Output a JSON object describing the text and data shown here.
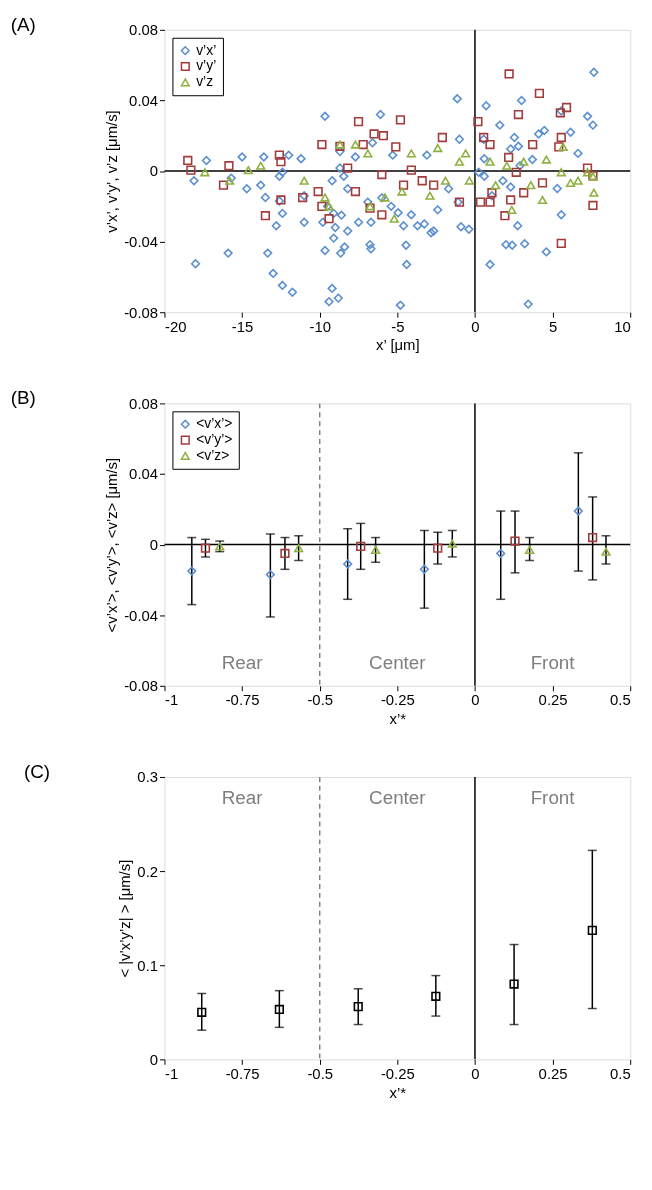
{
  "chart_data": [
    {
      "type": "scatter",
      "title": "(A)",
      "xlabel": "x’ [μm]",
      "ylabel": "v’x’, v’y’, v’z [μm/s]",
      "xlim": [
        -20,
        10
      ],
      "xticks": [
        -20,
        -15,
        -10,
        -5,
        0,
        5,
        10
      ],
      "ylim": [
        -0.08,
        0.08
      ],
      "yticks": [
        -0.08,
        -0.04,
        0,
        0.04,
        0.08
      ],
      "grid": false,
      "legend": "top left",
      "series": [
        {
          "name": "v’x’",
          "color": "#5b8fd0",
          "marker": "diamond",
          "x": [
            7.66,
            -1.14,
            0.72,
            3.0,
            -9.66,
            -6.09,
            5.56,
            7.25,
            7.6,
            1.6,
            4.47,
            6.16,
            4.1,
            6.64,
            -1.0,
            0.56,
            2.54,
            -6.6,
            2.3,
            2.8,
            -17.3,
            -15.0,
            -13.6,
            -12.0,
            -11.2,
            -8.7,
            -7.7,
            -5.3,
            -3.1,
            0.6,
            3.7,
            -18.1,
            -15.7,
            -14.7,
            -13.8,
            -12.6,
            -12.4,
            -11.0,
            -13.5,
            -12.6,
            -12.4,
            -12.8,
            -11.0,
            -9.8,
            -8.7,
            -8.45,
            -9.2,
            -8.2,
            -9.5,
            -9.1,
            -8.6,
            -9.0,
            -8.2,
            -9.1,
            -9.66,
            -8.65,
            -8.4,
            -6.76,
            -6.7,
            -7.5,
            -6.7,
            -6.9,
            -6.0,
            -5.4,
            -4.95,
            -4.6,
            -4.1,
            -3.7,
            -3.26,
            -2.83,
            -2.66,
            -2.4,
            -1.7,
            -1.09,
            -0.9,
            -0.39,
            -4.44,
            -4.4,
            -4.8,
            -8.8,
            -9.4,
            -9.2,
            -11.76,
            -12.4,
            -13.0,
            -13.35,
            -15.9,
            -18.0,
            0.97,
            2.0,
            2.4,
            3.2,
            4.6,
            3.43,
            5.56,
            5.3,
            2.75,
            2.3,
            1.8,
            0.6,
            0.24,
            2.9,
            1.09
          ],
          "values": [
            0.056,
            0.041,
            0.037,
            0.04,
            0.031,
            0.032,
            0.034,
            0.031,
            0.026,
            0.026,
            0.023,
            0.022,
            0.021,
            0.01,
            0.018,
            0.018,
            0.019,
            0.016,
            0.0125,
            0.014,
            0.006,
            0.008,
            0.008,
            0.009,
            0.007,
            0.011,
            0.008,
            0.009,
            0.009,
            0.007,
            0.0065,
            -0.0055,
            -0.004,
            -0.01,
            -0.008,
            -0.003,
            -0.0007,
            -0.014,
            -0.015,
            -0.017,
            -0.024,
            -0.031,
            -0.029,
            -0.029,
            0.0017,
            -0.003,
            -0.0055,
            -0.01,
            -0.02,
            -0.024,
            -0.025,
            -0.032,
            -0.034,
            -0.038,
            -0.045,
            -0.0465,
            -0.043,
            -0.0417,
            -0.044,
            -0.029,
            -0.029,
            -0.0176,
            -0.0152,
            -0.02,
            -0.0236,
            -0.031,
            -0.0248,
            -0.031,
            -0.03,
            -0.035,
            -0.034,
            -0.022,
            -0.01,
            -0.0176,
            -0.0316,
            -0.033,
            -0.042,
            -0.053,
            -0.076,
            -0.072,
            -0.074,
            -0.0665,
            -0.0687,
            -0.0648,
            -0.058,
            -0.0465,
            -0.0465,
            -0.0525,
            -0.053,
            -0.0417,
            -0.042,
            -0.0412,
            -0.0458,
            -0.0754,
            -0.0248,
            -0.0099,
            -0.031,
            -0.009,
            -0.0055,
            -0.003,
            -0.0007,
            0.003,
            -0.014
          ]
        },
        {
          "name": "v’y’",
          "color": "#a33b3b",
          "marker": "square",
          "x": [
            2.2,
            4.15,
            5.9,
            5.5,
            2.8,
            0.19,
            -7.5,
            -4.8,
            -6.5,
            -5.9,
            -2.1,
            0.56,
            0.97,
            -9.86,
            -8.7,
            -7.2,
            -5.1,
            3.72,
            5.56,
            5.4,
            7.25,
            -18.5,
            -18.3,
            -15.85,
            -12.6,
            -12.5,
            -16.2,
            -13.5,
            -12.5,
            -11.1,
            -10.1,
            -9.86,
            -9.4,
            -7.7,
            -6.76,
            -6.0,
            -4.6,
            -3.4,
            -2.66,
            -1.0,
            0.36,
            1.09,
            0.97,
            1.93,
            2.3,
            3.14,
            4.35,
            5.56,
            7.6,
            7.6,
            2.17,
            2.66,
            -8.2,
            -6.0,
            -4.1
          ],
          "values": [
            0.055,
            0.044,
            0.036,
            0.033,
            0.032,
            0.028,
            0.028,
            0.029,
            0.021,
            0.02,
            0.019,
            0.019,
            0.015,
            0.015,
            0.014,
            0.015,
            0.0137,
            0.015,
            0.019,
            0.0137,
            0.0017,
            0.006,
            0.0005,
            0.003,
            0.009,
            0.0053,
            -0.008,
            -0.0253,
            -0.0164,
            -0.015,
            -0.0116,
            -0.02,
            -0.027,
            -0.0116,
            -0.021,
            -0.0248,
            -0.008,
            -0.0055,
            -0.008,
            -0.0176,
            -0.0176,
            -0.0123,
            -0.0176,
            -0.0253,
            -0.0164,
            -0.0123,
            -0.0067,
            -0.041,
            -0.0195,
            -0.0027,
            0.0077,
            -0.0007,
            0.0017,
            -0.002,
            0.0005
          ]
        },
        {
          "name": "v’z",
          "color": "#8db03f",
          "marker": "triangle",
          "x": [
            -17.4,
            -15.8,
            -14.6,
            -13.8,
            -11.0,
            -9.66,
            -9.4,
            -8.7,
            -7.7,
            -6.76,
            -6.9,
            -5.2,
            -4.1,
            -2.4,
            -2.9,
            -1.9,
            -1.0,
            -0.6,
            -0.36,
            0.97,
            1.33,
            2.05,
            2.37,
            3.14,
            3.6,
            4.35,
            4.6,
            5.56,
            5.68,
            6.16,
            6.64,
            7.25,
            7.66,
            7.6,
            -5.8,
            -4.7
          ],
          "values": [
            -0.0007,
            -0.0055,
            0.0005,
            0.003,
            -0.0055,
            -0.015,
            -0.02,
            0.015,
            0.015,
            -0.02,
            0.01,
            -0.027,
            0.01,
            0.013,
            -0.014,
            -0.0055,
            0.0053,
            0.01,
            -0.0055,
            0.0053,
            -0.008,
            0.003,
            -0.022,
            0.0053,
            -0.008,
            -0.0164,
            0.0065,
            -0.0007,
            0.0137,
            -0.0067,
            -0.0055,
            -0.0007,
            -0.0123,
            -0.003,
            -0.015,
            -0.0116
          ]
        }
      ],
      "ref_lines": [
        {
          "axis": "x",
          "value": 0,
          "color": "#000000",
          "line_style": "solid"
        },
        {
          "axis": "y",
          "value": 0,
          "color": "#000000",
          "line_style": "solid"
        }
      ]
    },
    {
      "type": "scatter",
      "title": "(B)",
      "xlabel": "x’*",
      "ylabel": "<v’x’>, <v’y’>, <v’z> [μm/s]",
      "xlim": [
        -1,
        0.5
      ],
      "xticks": [
        -1,
        -0.75,
        -0.5,
        -0.25,
        0,
        0.25,
        0.5
      ],
      "ylim": [
        -0.08,
        0.08
      ],
      "yticks": [
        -0.08,
        -0.04,
        0,
        0.04,
        0.08
      ],
      "grid": false,
      "legend": "top left",
      "series": [
        {
          "name": "<v’x’>",
          "color": "#5b8fd0",
          "marker": "diamond",
          "x": [
            -0.912,
            -0.659,
            -0.41,
            -0.163,
            0.083,
            0.333
          ],
          "values": [
            -0.015,
            -0.017,
            -0.011,
            -0.014,
            -0.005,
            0.019
          ],
          "errors": [
            [
              -0.034,
              0.004
            ],
            [
              -0.041,
              0.006
            ],
            [
              -0.031,
              0.009
            ],
            [
              -0.036,
              0.008
            ],
            [
              -0.031,
              0.019
            ],
            [
              -0.015,
              0.052
            ]
          ]
        },
        {
          "name": "<v’y’>",
          "color": "#a33b3b",
          "marker": "square",
          "x": [
            -0.868,
            -0.612,
            -0.368,
            -0.12,
            0.129,
            0.379
          ],
          "values": [
            -0.002,
            -0.005,
            -0.001,
            -0.002,
            0.002,
            0.004
          ],
          "errors": [
            [
              -0.007,
              0.003
            ],
            [
              -0.014,
              0.004
            ],
            [
              -0.014,
              0.012
            ],
            [
              -0.011,
              0.007
            ],
            [
              -0.016,
              0.019
            ],
            [
              -0.02,
              0.027
            ]
          ]
        },
        {
          "name": "<v’z>",
          "color": "#8db03f",
          "marker": "triangle",
          "x": [
            -0.822,
            -0.568,
            -0.32,
            -0.073,
            0.176,
            0.422
          ],
          "values": [
            -0.001,
            -0.002,
            -0.003,
            0.0005,
            -0.003,
            -0.004
          ],
          "errors": [
            [
              -0.004,
              0.002
            ],
            [
              -0.009,
              0.005
            ],
            [
              -0.01,
              0.004
            ],
            [
              -0.007,
              0.008
            ],
            [
              -0.009,
              0.004
            ],
            [
              -0.011,
              0.005
            ]
          ]
        }
      ],
      "ref_lines": [
        {
          "axis": "x",
          "value": -0.5,
          "color": "#808080",
          "line_style": "dashed"
        },
        {
          "axis": "x",
          "value": 0,
          "color": "#000000",
          "line_style": "solid"
        },
        {
          "axis": "y",
          "value": 0,
          "color": "#000000",
          "line_style": "solid"
        }
      ],
      "annotations": [
        "Rear",
        "Center",
        "Front"
      ]
    },
    {
      "type": "scatter",
      "title": "(C)",
      "xlabel": "x’*",
      "ylabel": "< |v’x’y’z| > [μm/s]",
      "xlim": [
        -1,
        0.5
      ],
      "xticks": [
        -1,
        -0.75,
        -0.5,
        -0.25,
        0,
        0.25,
        0.5
      ],
      "ylim": [
        0,
        0.3
      ],
      "yticks": [
        0,
        0.1,
        0.2,
        0.3
      ],
      "grid": false,
      "series": [
        {
          "color": "#000000",
          "marker": "square",
          "x": [
            -0.88,
            -0.63,
            -0.376,
            -0.126,
            0.126,
            0.378
          ],
          "values": [
            0.05,
            0.053,
            0.056,
            0.067,
            0.08,
            0.137
          ],
          "errors": [
            [
              0.031,
              0.07
            ],
            [
              0.034,
              0.073
            ],
            [
              0.037,
              0.075
            ],
            [
              0.046,
              0.089
            ],
            [
              0.037,
              0.122
            ],
            [
              0.054,
              0.222
            ]
          ]
        }
      ],
      "ref_lines": [
        {
          "axis": "x",
          "value": -0.5,
          "color": "#808080",
          "line_style": "dashed"
        },
        {
          "axis": "x",
          "value": 0,
          "color": "#000000",
          "line_style": "solid"
        }
      ],
      "annotations": [
        "Rear",
        "Center",
        "Front"
      ]
    }
  ]
}
